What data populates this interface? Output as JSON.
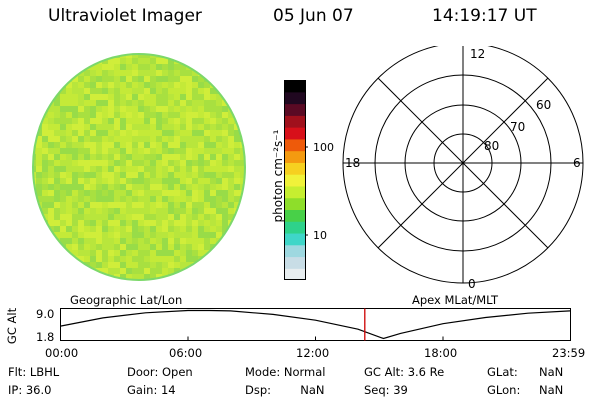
{
  "header": {
    "instrument": "Ultraviolet Imager",
    "date": "05 Jun 07",
    "time": "14:19:17 UT"
  },
  "colorbar": {
    "label": "photon cm⁻²s⁻¹",
    "ticks": [
      "100",
      "10"
    ],
    "scale": "log",
    "colors": [
      "#e8eef0",
      "#c8dde6",
      "#9ed8e0",
      "#3fd6c8",
      "#2ed28a",
      "#48d048",
      "#8ede2a",
      "#c6ee30",
      "#f0f23a",
      "#f6d020",
      "#f49a10",
      "#ee5a0a",
      "#d8101a",
      "#a0101c",
      "#5a0a24",
      "#200820",
      "#000000"
    ]
  },
  "image_panel": {
    "fill_colors": [
      "#b8e63c",
      "#c4ea38",
      "#a8e040",
      "#d0ee3a",
      "#98dc48"
    ],
    "edge_color": "#7cd86a"
  },
  "polar_plot": {
    "labels": {
      "top": "12",
      "bottom": "0",
      "left": "18",
      "right": "6"
    },
    "rings": [
      "60",
      "70",
      "80"
    ]
  },
  "chart_data": {
    "type": "line",
    "title": "",
    "xlabel": "",
    "ylabel": "GC Alt",
    "left_label": "Geographic Lat/Lon",
    "right_label": "Apex MLat/MLT",
    "x_ticks": [
      "00:00",
      "06:00",
      "12:00",
      "18:00",
      "23:59"
    ],
    "y_ticks": [
      "9.0",
      "1.8"
    ],
    "xlim": [
      0,
      24
    ],
    "ylim": [
      1.8,
      9.0
    ],
    "x": [
      0,
      2,
      4,
      6,
      7,
      8,
      10,
      12,
      14,
      15.2,
      16,
      18,
      20,
      22,
      23.98
    ],
    "y": [
      5.0,
      7.1,
      8.4,
      9.0,
      9.0,
      8.9,
      8.0,
      6.5,
      4.2,
      1.8,
      3.1,
      5.6,
      7.2,
      8.3,
      8.9
    ],
    "current_time": 14.32,
    "current_marker_color": "#cc0000"
  },
  "status": {
    "flt": "Flt: LBHL",
    "ip": "IP: 36.0",
    "door": "Door: Open",
    "gain": "Gain: 14",
    "mode": "Mode: Normal",
    "dsp": "Dsp:        NaN",
    "gcalt": "GC Alt: 3.6 Re",
    "seq": "Seq: 39",
    "glat_label": "GLat:",
    "glat_value": "NaN",
    "glon_label": "GLon:",
    "glon_value": "NaN"
  }
}
